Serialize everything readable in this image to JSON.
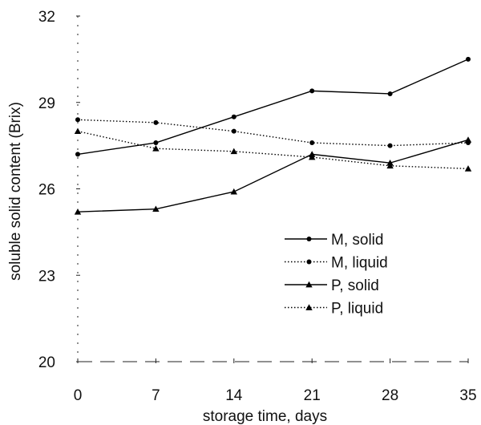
{
  "chart_data": {
    "type": "line",
    "title": "",
    "xlabel": "storage time, days",
    "ylabel": "soluble solid content (Brix)",
    "x": [
      0,
      7,
      14,
      21,
      28,
      35
    ],
    "xticks": [
      "0",
      "7",
      "14",
      "21",
      "28",
      "35"
    ],
    "yticks": [
      "20",
      "23",
      "26",
      "29",
      "32"
    ],
    "ytick_values": [
      20,
      23,
      26,
      29,
      32
    ],
    "xlim": [
      0,
      35
    ],
    "ylim": [
      20,
      32
    ],
    "grid": false,
    "legend_position": "center-right",
    "series": [
      {
        "name": "M, solid",
        "marker": "circle",
        "dash": "solid",
        "values": [
          27.2,
          27.6,
          28.5,
          29.4,
          29.3,
          30.5
        ]
      },
      {
        "name": "M, liquid",
        "marker": "circle",
        "dash": "dotted",
        "values": [
          28.4,
          28.3,
          28.0,
          27.6,
          27.5,
          27.6
        ]
      },
      {
        "name": "P, solid",
        "marker": "triangle",
        "dash": "solid",
        "values": [
          25.2,
          25.3,
          25.9,
          27.2,
          26.9,
          27.7
        ]
      },
      {
        "name": "P, liquid",
        "marker": "triangle",
        "dash": "dotted",
        "values": [
          28.0,
          27.4,
          27.3,
          27.1,
          26.8,
          26.7
        ]
      }
    ]
  }
}
